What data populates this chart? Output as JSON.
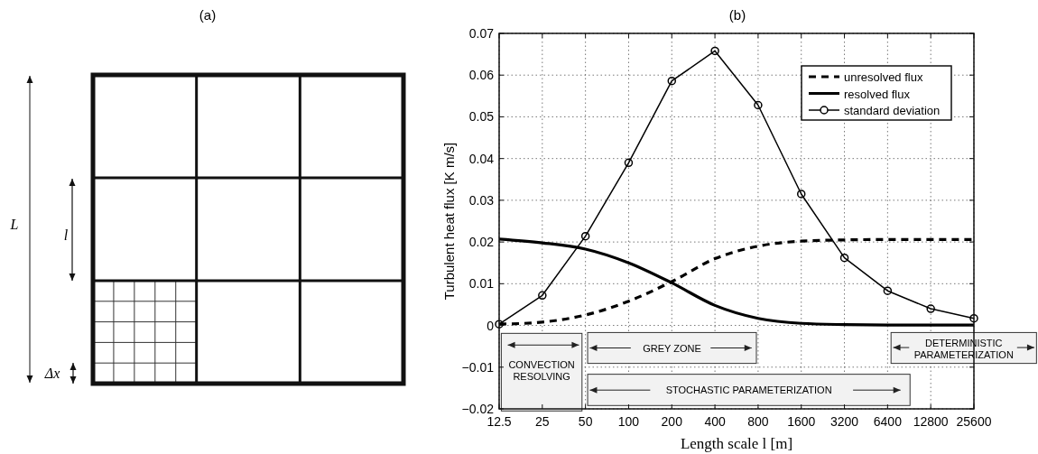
{
  "chart_data": [
    {
      "type": "other",
      "title": "(a)",
      "annotations": [
        "L",
        "l",
        "Δx"
      ]
    },
    {
      "type": "line",
      "title": "(b)",
      "xlabel": "Length scale l [m]",
      "ylabel": "Turbulent heat flux [K m/s]",
      "categories": [
        "12.5",
        "25",
        "50",
        "100",
        "200",
        "400",
        "800",
        "1600",
        "3200",
        "6400",
        "12800",
        "25600"
      ],
      "series": [
        {
          "name": "unresolved flux",
          "color": "#000000",
          "line_style": "dashed",
          "marker": "none",
          "values": [
            0.0003,
            0.0008,
            0.0025,
            0.0058,
            0.0105,
            0.016,
            0.019,
            0.0202,
            0.0205,
            0.0206,
            0.0206,
            0.0206
          ]
        },
        {
          "name": "resolved flux",
          "color": "#000000",
          "line_style": "solid",
          "marker": "none",
          "values": [
            0.0207,
            0.0198,
            0.0183,
            0.015,
            0.0102,
            0.0048,
            0.0017,
            0.0005,
            0.0002,
            0.0001,
            0.0001,
            0.0001
          ]
        },
        {
          "name": "standard deviation",
          "color": "#000000",
          "line_style": "solid",
          "marker": "circle",
          "values": [
            0.0003,
            0.0072,
            0.0214,
            0.039,
            0.0586,
            0.0658,
            0.0528,
            0.0315,
            0.0162,
            0.0083,
            0.004,
            0.0017
          ]
        }
      ],
      "ylim": [
        -0.02,
        0.07
      ],
      "yticks": [
        {
          "value": -0.02,
          "label": "−0.02"
        },
        {
          "value": -0.01,
          "label": "−0.01"
        },
        0,
        0.01,
        0.02,
        0.03,
        0.04,
        0.05,
        0.06,
        0.07
      ],
      "grid": true,
      "legend": "top right",
      "annotations": [
        "CONVECTION RESOLVING",
        "GREY ZONE",
        "STOCHASTIC PARAMETERIZATION",
        "DETERMINISTIC PARAMETERIZATION"
      ]
    }
  ]
}
